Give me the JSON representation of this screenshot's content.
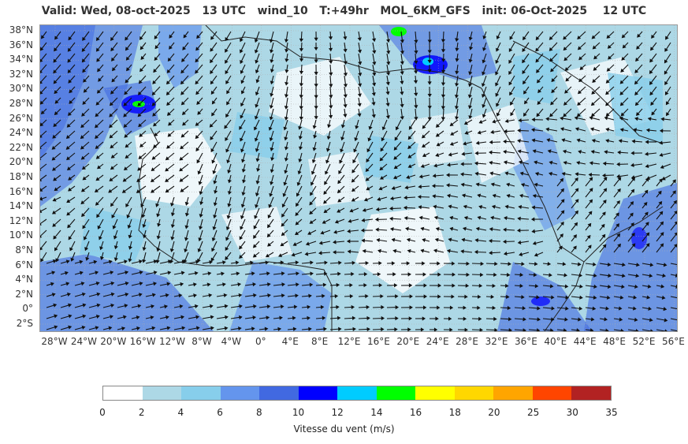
{
  "header": {
    "title": "Valid: Wed, 08-oct-2025   13 UTC   wind_10   T:+49hr   MOL_6KM_GFS   init: 06-Oct-2025    12 UTC"
  },
  "map": {
    "lat_labels": [
      "38°N",
      "36°N",
      "34°N",
      "32°N",
      "30°N",
      "28°N",
      "26°N",
      "24°N",
      "22°N",
      "20°N",
      "18°N",
      "16°N",
      "14°N",
      "12°N",
      "10°N",
      "8°N",
      "6°N",
      "4°N",
      "2°N",
      "0°",
      "2°S"
    ],
    "lon_labels": [
      "28°W",
      "24°W",
      "20°W",
      "16°W",
      "12°W",
      "8°W",
      "4°W",
      "0°",
      "4°E",
      "8°E",
      "12°E",
      "16°E",
      "20°E",
      "24°E",
      "28°E",
      "32°E",
      "36°E",
      "40°E",
      "44°E",
      "48°E",
      "52°E",
      "56°E"
    ]
  },
  "colorbar": {
    "title": "Vitesse du vent (m/s)",
    "ticks": [
      "0",
      "2",
      "4",
      "6",
      "8",
      "10",
      "12",
      "14",
      "16",
      "18",
      "20",
      "25",
      "30",
      "35"
    ],
    "colors": [
      "#ffffff",
      "#add8e6",
      "#87ceeb",
      "#6495ed",
      "#4169e1",
      "#0000ff",
      "#00ccff",
      "#00ff00",
      "#ffff00",
      "#ffd700",
      "#ffa500",
      "#ff4500",
      "#b22222"
    ]
  }
}
